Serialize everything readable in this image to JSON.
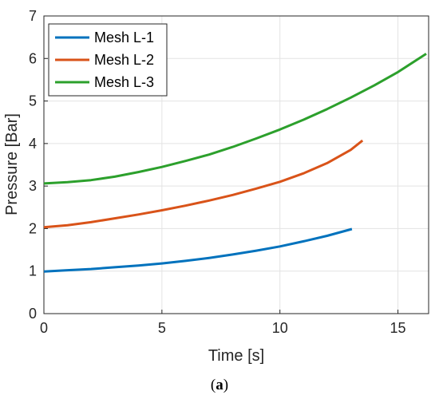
{
  "caption": {
    "open": "(",
    "letter": "a",
    "close": ")"
  },
  "chart_data": {
    "type": "line",
    "xlabel": "Time [s]",
    "ylabel": "Pressure [Bar]",
    "xlim": [
      0,
      16.3
    ],
    "ylim": [
      0,
      7
    ],
    "xticks": [
      0,
      5,
      10,
      15
    ],
    "yticks": [
      0,
      1,
      2,
      3,
      4,
      5,
      6,
      7
    ],
    "grid": true,
    "legend_position": "top-left",
    "series": [
      {
        "name": "Mesh L-1",
        "color": "#0072BD",
        "x": [
          0,
          1,
          2,
          3,
          4,
          5,
          6,
          7,
          8,
          9,
          10,
          11,
          12,
          13.05
        ],
        "y": [
          0.99,
          1.02,
          1.05,
          1.09,
          1.13,
          1.18,
          1.24,
          1.31,
          1.39,
          1.48,
          1.58,
          1.7,
          1.83,
          1.99
        ]
      },
      {
        "name": "Mesh L-2",
        "color": "#D95319",
        "x": [
          0,
          1,
          2,
          3,
          4,
          5,
          6,
          7,
          8,
          9,
          10,
          11,
          12,
          13,
          13.5
        ],
        "y": [
          2.03,
          2.08,
          2.15,
          2.24,
          2.33,
          2.43,
          2.54,
          2.66,
          2.79,
          2.94,
          3.1,
          3.3,
          3.54,
          3.85,
          4.07
        ]
      },
      {
        "name": "Mesh L-3",
        "color": "#2CA02C",
        "x": [
          0,
          1,
          2,
          3,
          4,
          5,
          6,
          7,
          8,
          9,
          10,
          11,
          12,
          13,
          14,
          15,
          16.2
        ],
        "y": [
          3.06,
          3.09,
          3.14,
          3.22,
          3.33,
          3.45,
          3.59,
          3.74,
          3.92,
          4.12,
          4.33,
          4.56,
          4.81,
          5.08,
          5.37,
          5.68,
          6.11
        ]
      }
    ]
  }
}
